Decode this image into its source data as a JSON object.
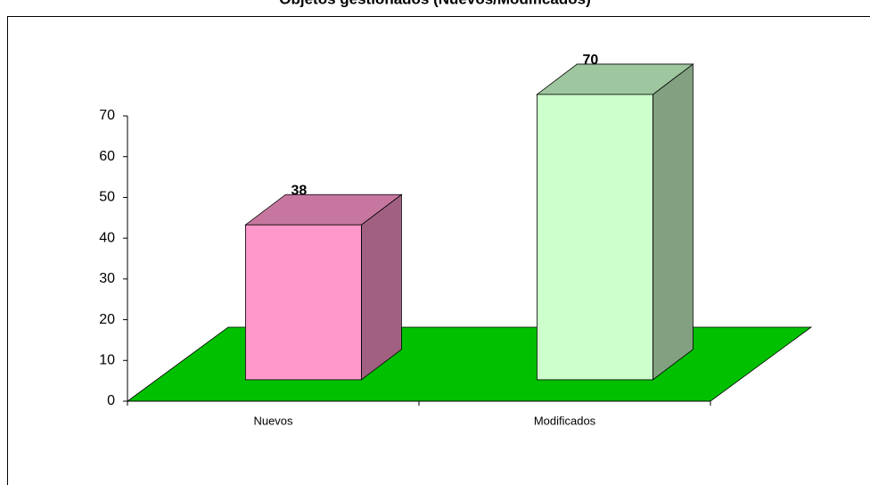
{
  "chart_data": {
    "type": "bar3d",
    "title": "Objetos gestionados (Nuevos/Modificados)",
    "categories": [
      "Nuevos",
      "Modificados"
    ],
    "values": [
      38,
      70
    ],
    "colors": [
      "#ff99cc",
      "#ccffcc"
    ],
    "floor_color": "#00c000",
    "ylim": [
      0,
      70
    ],
    "yticks": [
      0,
      10,
      20,
      30,
      40,
      50,
      60,
      70
    ]
  }
}
